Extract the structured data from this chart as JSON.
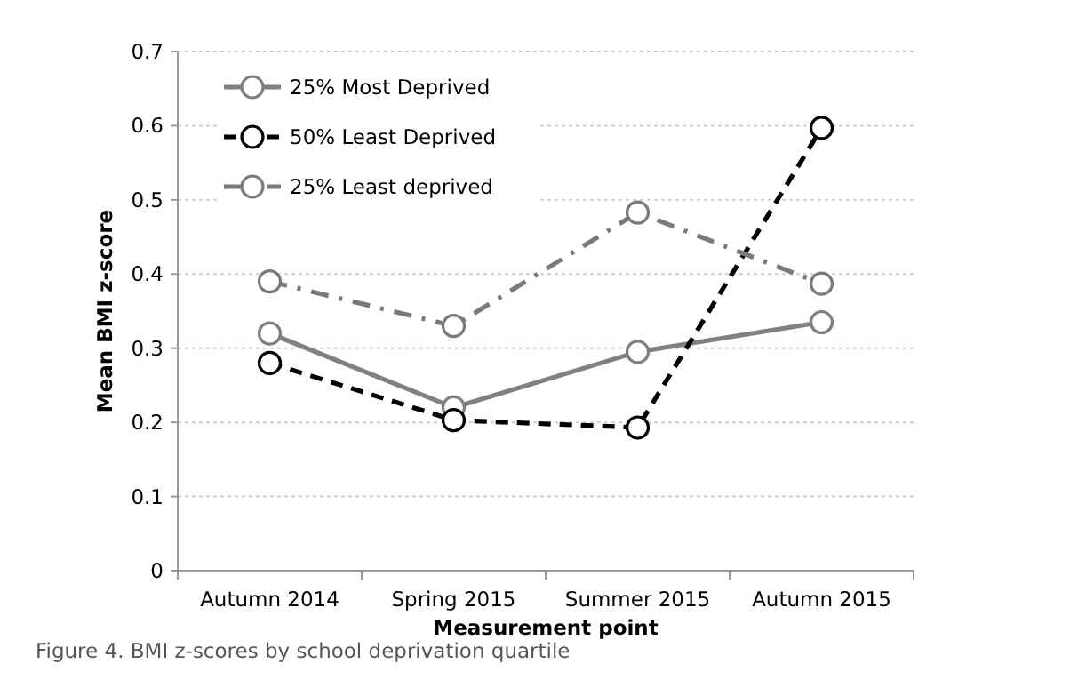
{
  "chart_data": {
    "type": "line",
    "xlabel": "Measurement point",
    "ylabel": "Mean BMI z-score",
    "categories": [
      "Autumn 2014",
      "Spring 2015",
      "Summer 2015",
      "Autumn 2015"
    ],
    "series": [
      {
        "name": "25% Most Deprived",
        "color": "#808080",
        "line_style": "solid",
        "values": [
          0.32,
          0.22,
          0.295,
          0.335
        ]
      },
      {
        "name": "50% Least Deprived",
        "color": "#000000",
        "line_style": "dashed",
        "values": [
          0.28,
          0.203,
          0.193,
          0.597
        ]
      },
      {
        "name": "25% Least deprived",
        "color": "#7a7a7a",
        "line_style": "dashdot",
        "values": [
          0.39,
          0.33,
          0.483,
          0.387
        ]
      }
    ],
    "ylim": [
      0,
      0.7
    ],
    "yticks": [
      0,
      0.1,
      0.2,
      0.3,
      0.4,
      0.5,
      0.6,
      0.7
    ],
    "grid": "y",
    "legend": "top left",
    "marker": "circle",
    "annotations": [
      "Figure 4. BMI z-scores by school deprivation quartile"
    ]
  }
}
